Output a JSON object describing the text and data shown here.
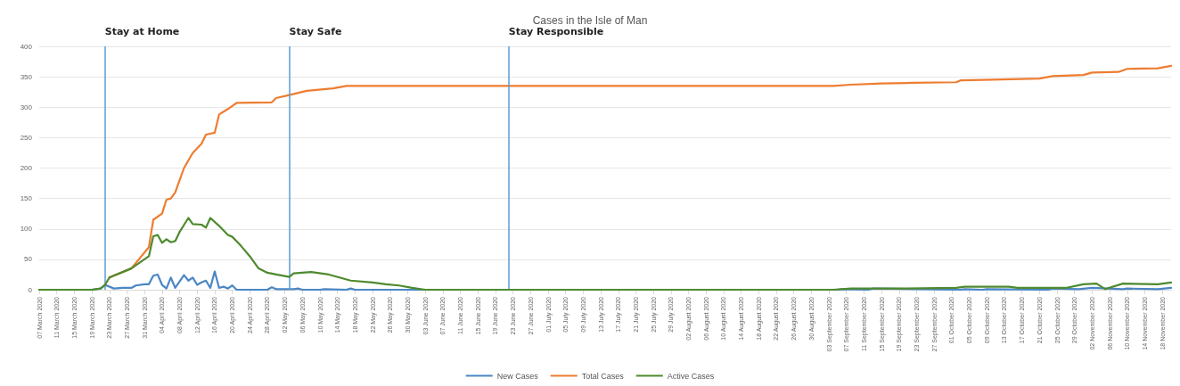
{
  "chart_data": {
    "type": "line",
    "title": "Cases in the Isle of Man",
    "xlim": [
      "2020-03-07",
      "2020-11-20"
    ],
    "xticks": [
      {
        "value": "2020-03-07",
        "label": "07 March 2020"
      },
      {
        "value": "2020-03-11",
        "label": "11 March 2020"
      },
      {
        "value": "2020-03-15",
        "label": "15 March 2020"
      },
      {
        "value": "2020-03-19",
        "label": "19 March 2020"
      },
      {
        "value": "2020-03-23",
        "label": "23 March 2020"
      },
      {
        "value": "2020-03-27",
        "label": "27 March 2020"
      },
      {
        "value": "2020-03-31",
        "label": "31 March 2020"
      },
      {
        "value": "2020-04-04",
        "label": "04 April 2020"
      },
      {
        "value": "2020-04-08",
        "label": "08 April 2020"
      },
      {
        "value": "2020-04-12",
        "label": "12 April 2020"
      },
      {
        "value": "2020-04-16",
        "label": "16 April 2020"
      },
      {
        "value": "2020-04-20",
        "label": "20 April 2020"
      },
      {
        "value": "2020-04-24",
        "label": "24 April 2020"
      },
      {
        "value": "2020-04-28",
        "label": "28 April 2020"
      },
      {
        "value": "2020-05-02",
        "label": "02 May 2020"
      },
      {
        "value": "2020-05-06",
        "label": "06 May 2020"
      },
      {
        "value": "2020-05-10",
        "label": "10 May 2020"
      },
      {
        "value": "2020-05-14",
        "label": "14 May 2020"
      },
      {
        "value": "2020-05-18",
        "label": "18 May 2020"
      },
      {
        "value": "2020-05-22",
        "label": "22 May 2020"
      },
      {
        "value": "2020-05-26",
        "label": "26 May 2020"
      },
      {
        "value": "2020-05-30",
        "label": "30 May 2020"
      },
      {
        "value": "2020-06-03",
        "label": "03 June 2020"
      },
      {
        "value": "2020-06-07",
        "label": "07 June 2020"
      },
      {
        "value": "2020-06-11",
        "label": "11 June 2020"
      },
      {
        "value": "2020-06-15",
        "label": "15 June 2020"
      },
      {
        "value": "2020-06-19",
        "label": "19 June 2020"
      },
      {
        "value": "2020-06-23",
        "label": "23 June 2020"
      },
      {
        "value": "2020-06-27",
        "label": "27 June 2020"
      },
      {
        "value": "2020-07-01",
        "label": "01 July 2020"
      },
      {
        "value": "2020-07-05",
        "label": "05 July 2020"
      },
      {
        "value": "2020-07-09",
        "label": "09 July 2020"
      },
      {
        "value": "2020-07-13",
        "label": "13 July 2020"
      },
      {
        "value": "2020-07-17",
        "label": "17 July 2020"
      },
      {
        "value": "2020-07-21",
        "label": "21 July 2020"
      },
      {
        "value": "2020-07-25",
        "label": "25 July 2020"
      },
      {
        "value": "2020-07-29",
        "label": "29 July 2020"
      },
      {
        "value": "2020-08-02",
        "label": "02 August 2020"
      },
      {
        "value": "2020-08-06",
        "label": "06 August 2020"
      },
      {
        "value": "2020-08-10",
        "label": "10 August 2020"
      },
      {
        "value": "2020-08-14",
        "label": "14 August 2020"
      },
      {
        "value": "2020-08-18",
        "label": "18 August 2020"
      },
      {
        "value": "2020-08-22",
        "label": "22 August 2020"
      },
      {
        "value": "2020-08-26",
        "label": "26 August 2020"
      },
      {
        "value": "2020-08-30",
        "label": "30 August 2020"
      },
      {
        "value": "2020-09-03",
        "label": "03 September 2020"
      },
      {
        "value": "2020-09-07",
        "label": "07 September 2020"
      },
      {
        "value": "2020-09-11",
        "label": "11 September 2020"
      },
      {
        "value": "2020-09-15",
        "label": "15 September 2020"
      },
      {
        "value": "2020-09-19",
        "label": "19 September 2020"
      },
      {
        "value": "2020-09-23",
        "label": "23 September 2020"
      },
      {
        "value": "2020-09-27",
        "label": "27 September 2020"
      },
      {
        "value": "2020-10-01",
        "label": "01 October 2020"
      },
      {
        "value": "2020-10-05",
        "label": "05 October 2020"
      },
      {
        "value": "2020-10-09",
        "label": "09 October 2020"
      },
      {
        "value": "2020-10-13",
        "label": "13 October 2020"
      },
      {
        "value": "2020-10-17",
        "label": "17 October 2020"
      },
      {
        "value": "2020-10-21",
        "label": "21 October 2020"
      },
      {
        "value": "2020-10-25",
        "label": "25 October 2020"
      },
      {
        "value": "2020-10-29",
        "label": "29 October 2020"
      },
      {
        "value": "2020-11-02",
        "label": "02 November 2020"
      },
      {
        "value": "2020-11-06",
        "label": "06 November 2020"
      },
      {
        "value": "2020-11-10",
        "label": "10 November 2020"
      },
      {
        "value": "2020-11-14",
        "label": "14 November 2020"
      },
      {
        "value": "2020-11-18",
        "label": "18 November 2020"
      }
    ],
    "ylim": [
      0,
      400
    ],
    "yticks": [
      0,
      50,
      100,
      150,
      200,
      250,
      300,
      350,
      400
    ],
    "grid": "y",
    "legend": "bottom",
    "marker": "none",
    "line_style": "solid",
    "series": [
      {
        "name": "New Cases",
        "color": "#4a86c5",
        "x": [
          "2020-03-07",
          "2020-03-19",
          "2020-03-21",
          "2020-03-22",
          "2020-03-24",
          "2020-03-26",
          "2020-03-28",
          "2020-03-29",
          "2020-03-31",
          "2020-04-01",
          "2020-04-02",
          "2020-04-03",
          "2020-04-04",
          "2020-04-05",
          "2020-04-06",
          "2020-04-07",
          "2020-04-09",
          "2020-04-10",
          "2020-04-11",
          "2020-04-12",
          "2020-04-13",
          "2020-04-14",
          "2020-04-15",
          "2020-04-16",
          "2020-04-17",
          "2020-04-18",
          "2020-04-19",
          "2020-04-20",
          "2020-04-21",
          "2020-04-28",
          "2020-04-29",
          "2020-04-30",
          "2020-05-04",
          "2020-05-05",
          "2020-05-06",
          "2020-05-10",
          "2020-05-11",
          "2020-05-16",
          "2020-05-17",
          "2020-05-18",
          "2020-09-05",
          "2020-09-06",
          "2020-09-12",
          "2020-09-13",
          "2020-10-03",
          "2020-10-04",
          "2020-10-08",
          "2020-10-09",
          "2020-10-23",
          "2020-10-24",
          "2020-10-30",
          "2020-11-02",
          "2020-11-09",
          "2020-11-10",
          "2020-11-17",
          "2020-11-20"
        ],
        "values": [
          0,
          0,
          2,
          8,
          2,
          3,
          3,
          7,
          9,
          9,
          23,
          25,
          8,
          2,
          20,
          3,
          24,
          15,
          20,
          8,
          12,
          15,
          3,
          30,
          3,
          5,
          2,
          7,
          0,
          0,
          4,
          1,
          1,
          2,
          0,
          0,
          1,
          0,
          2,
          0,
          0,
          1,
          0,
          2,
          0,
          1,
          0,
          1,
          0,
          2,
          1,
          3,
          1,
          2,
          1,
          3
        ]
      },
      {
        "name": "Total Cases",
        "color": "#ed7d31",
        "x": [
          "2020-03-23",
          "2020-03-28",
          "2020-04-01",
          "2020-04-02",
          "2020-04-04",
          "2020-04-05",
          "2020-04-06",
          "2020-04-07",
          "2020-04-09",
          "2020-04-11",
          "2020-04-13",
          "2020-04-14",
          "2020-04-16",
          "2020-04-17",
          "2020-04-19",
          "2020-04-21",
          "2020-04-29",
          "2020-04-30",
          "2020-05-03",
          "2020-05-07",
          "2020-05-13",
          "2020-05-16",
          "2020-09-04",
          "2020-09-08",
          "2020-09-15",
          "2020-09-22",
          "2020-10-02",
          "2020-10-03",
          "2020-10-08",
          "2020-10-21",
          "2020-10-24",
          "2020-10-31",
          "2020-11-02",
          "2020-11-08",
          "2020-11-10",
          "2020-11-17",
          "2020-11-20"
        ],
        "values": [
          20,
          35,
          70,
          115,
          125,
          148,
          150,
          160,
          200,
          225,
          240,
          255,
          258,
          288,
          297,
          307,
          308,
          315,
          320,
          327,
          331,
          335,
          335,
          337,
          339,
          340,
          341,
          344,
          345,
          347,
          351,
          353,
          357,
          358,
          363,
          364,
          368
        ]
      },
      {
        "name": "Active Cases",
        "color": "#4e8a2e",
        "x": [
          "2020-03-07",
          "2020-03-19",
          "2020-03-21",
          "2020-03-22",
          "2020-03-23",
          "2020-03-28",
          "2020-04-01",
          "2020-04-02",
          "2020-04-03",
          "2020-04-04",
          "2020-04-05",
          "2020-04-06",
          "2020-04-07",
          "2020-04-08",
          "2020-04-10",
          "2020-04-11",
          "2020-04-13",
          "2020-04-14",
          "2020-04-15",
          "2020-04-17",
          "2020-04-19",
          "2020-04-20",
          "2020-04-22",
          "2020-04-24",
          "2020-04-26",
          "2020-04-28",
          "2020-04-30",
          "2020-05-03",
          "2020-05-04",
          "2020-05-08",
          "2020-05-12",
          "2020-05-17",
          "2020-05-22",
          "2020-05-25",
          "2020-05-28",
          "2020-05-31",
          "2020-06-03",
          "2020-09-04",
          "2020-09-08",
          "2020-09-20",
          "2020-10-02",
          "2020-10-04",
          "2020-10-14",
          "2020-10-16",
          "2020-10-27",
          "2020-10-31",
          "2020-11-03",
          "2020-11-05",
          "2020-11-09",
          "2020-11-17",
          "2020-11-20"
        ],
        "values": [
          0,
          0,
          2,
          8,
          20,
          35,
          55,
          88,
          90,
          77,
          83,
          78,
          80,
          95,
          118,
          108,
          107,
          102,
          118,
          105,
          90,
          87,
          72,
          55,
          35,
          28,
          25,
          21,
          27,
          29,
          25,
          15,
          12,
          9,
          7,
          3,
          0,
          0,
          2,
          2,
          3,
          5,
          5,
          3,
          3,
          9,
          10,
          1,
          10,
          9,
          12
        ]
      }
    ],
    "ref_lines": [
      {
        "axis": "x",
        "value": "2020-03-22",
        "label": "Stay at Home",
        "color": "#5b9bd5"
      },
      {
        "axis": "x",
        "value": "2020-05-03",
        "label": "Stay Safe",
        "color": "#5b9bd5"
      },
      {
        "axis": "x",
        "value": "2020-06-22",
        "label": "Stay Responsible",
        "color": "#5b9bd5"
      }
    ]
  }
}
